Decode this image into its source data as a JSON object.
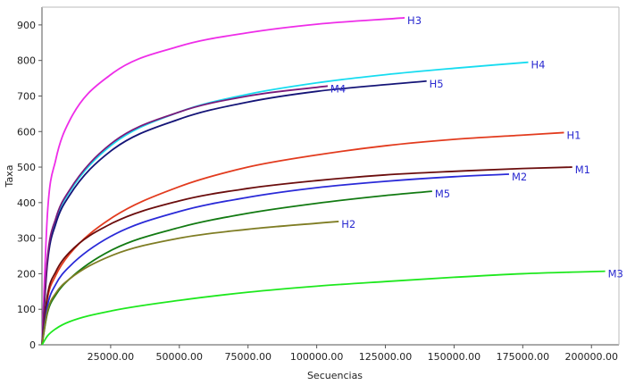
{
  "chart_data": {
    "type": "line",
    "xlabel": "Secuencias",
    "ylabel": "Taxa",
    "xlim": [
      0,
      210000
    ],
    "ylim": [
      0,
      950
    ],
    "x_ticks": [
      25000,
      50000,
      75000,
      100000,
      125000,
      150000,
      175000,
      200000
    ],
    "x_tick_labels": [
      "25000.00",
      "50000.00",
      "75000.00",
      "100000.00",
      "125000.00",
      "150000.00",
      "175000.00",
      "200000.00"
    ],
    "y_ticks": [
      0,
      100,
      200,
      300,
      400,
      500,
      600,
      700,
      800,
      900
    ],
    "y_tick_labels": [
      "0",
      "100",
      "200",
      "300",
      "400",
      "500",
      "600",
      "700",
      "800",
      "900"
    ],
    "grid": false,
    "series": [
      {
        "name": "H3",
        "color": "#ee2de8",
        "x": [
          0,
          2000,
          5000,
          10000,
          25000,
          50000,
          75000,
          100000,
          132000
        ],
        "y": [
          0,
          370,
          520,
          630,
          760,
          840,
          878,
          902,
          920
        ]
      },
      {
        "name": "H4",
        "color": "#17dcf0",
        "x": [
          0,
          2000,
          5000,
          10000,
          25000,
          50000,
          75000,
          100000,
          125000,
          150000,
          177000
        ],
        "y": [
          0,
          240,
          350,
          430,
          560,
          655,
          705,
          737,
          760,
          778,
          795
        ]
      },
      {
        "name": "H5",
        "color": "#141477",
        "x": [
          0,
          2000,
          5000,
          10000,
          25000,
          50000,
          75000,
          100000,
          140000
        ],
        "y": [
          0,
          230,
          340,
          420,
          545,
          635,
          683,
          713,
          742
        ]
      },
      {
        "name": "M4",
        "color": "#7a1a7a",
        "x": [
          0,
          2000,
          5000,
          10000,
          25000,
          50000,
          75000,
          104000
        ],
        "y": [
          0,
          245,
          355,
          435,
          565,
          655,
          700,
          728
        ]
      },
      {
        "name": "H1",
        "color": "#e23b1e",
        "x": [
          0,
          2000,
          5000,
          10000,
          25000,
          50000,
          75000,
          100000,
          125000,
          150000,
          175000,
          190000
        ],
        "y": [
          0,
          130,
          195,
          255,
          355,
          445,
          500,
          534,
          560,
          578,
          590,
          597
        ]
      },
      {
        "name": "M1",
        "color": "#6b0d0d",
        "x": [
          0,
          2000,
          5000,
          10000,
          25000,
          50000,
          75000,
          100000,
          125000,
          150000,
          175000,
          193000
        ],
        "y": [
          0,
          140,
          205,
          260,
          340,
          405,
          440,
          462,
          478,
          488,
          496,
          500
        ]
      },
      {
        "name": "M2",
        "color": "#2a2ad8",
        "x": [
          0,
          2000,
          5000,
          10000,
          25000,
          50000,
          75000,
          100000,
          125000,
          150000,
          170000
        ],
        "y": [
          0,
          110,
          170,
          220,
          305,
          375,
          415,
          442,
          460,
          473,
          480
        ]
      },
      {
        "name": "M5",
        "color": "#127a12",
        "x": [
          0,
          2000,
          5000,
          10000,
          25000,
          50000,
          75000,
          100000,
          125000,
          142000
        ],
        "y": [
          0,
          90,
          140,
          185,
          265,
          330,
          370,
          398,
          420,
          432
        ]
      },
      {
        "name": "H2",
        "color": "#7f7d24",
        "x": [
          0,
          2000,
          5000,
          10000,
          25000,
          50000,
          75000,
          100000,
          108000
        ],
        "y": [
          0,
          95,
          145,
          185,
          250,
          300,
          325,
          342,
          347
        ]
      },
      {
        "name": "M3",
        "color": "#1ee81e",
        "x": [
          0,
          2000,
          5000,
          10000,
          25000,
          50000,
          75000,
          100000,
          125000,
          150000,
          175000,
          205000
        ],
        "y": [
          0,
          25,
          45,
          65,
          95,
          125,
          148,
          165,
          178,
          190,
          200,
          207
        ]
      }
    ]
  }
}
